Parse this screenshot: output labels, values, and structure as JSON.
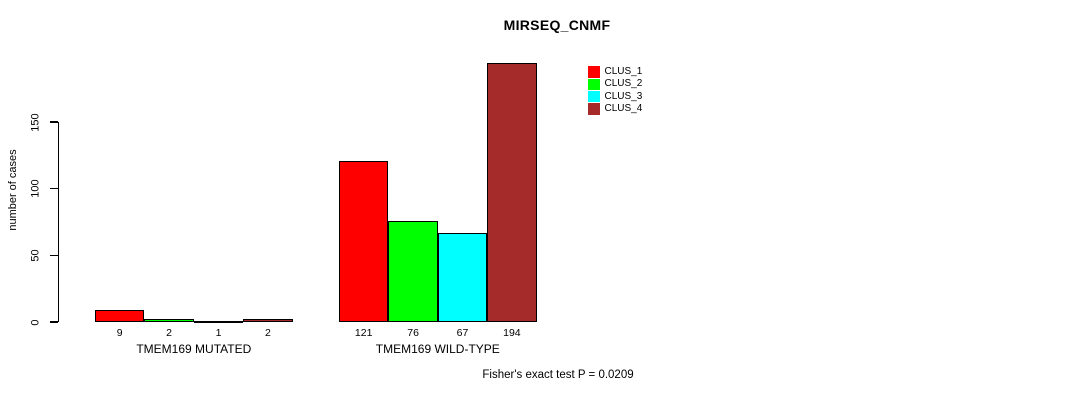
{
  "chart_data": {
    "type": "bar",
    "title": "MIRSEQ_CNMF",
    "ylabel": "number of cases",
    "ylim": [
      0,
      195
    ],
    "yticks": [
      0,
      50,
      100,
      150
    ],
    "grid": false,
    "legend_position": "top-right",
    "bar_value_labels": true,
    "categories": [
      "TMEM169 MUTATED",
      "TMEM169 WILD-TYPE"
    ],
    "series": [
      {
        "name": "CLUS_1",
        "color": "#FF0000",
        "values": [
          9,
          121
        ]
      },
      {
        "name": "CLUS_2",
        "color": "#00FF00",
        "values": [
          2,
          76
        ]
      },
      {
        "name": "CLUS_3",
        "color": "#00FFFF",
        "values": [
          1,
          67
        ]
      },
      {
        "name": "CLUS_4",
        "color": "#A52A2A",
        "values": [
          2,
          194
        ]
      }
    ],
    "footnote": "Fisher's exact test P = 0.0209",
    "axis_color": "#000000",
    "bar_border_color": "#000000"
  }
}
